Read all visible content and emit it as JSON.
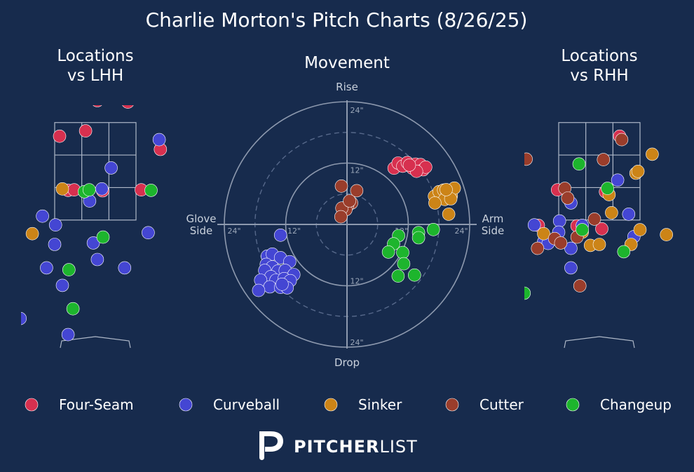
{
  "chart_data": {
    "type": "scatter",
    "title": "Charlie Morton's Pitch Charts (8/26/25)",
    "brand": {
      "bold": "PITCHER",
      "light": "LIST"
    },
    "pitch_types": [
      {
        "key": "FF",
        "name": "Four-Seam",
        "color": "#d7304f"
      },
      {
        "key": "CU",
        "name": "Curveball",
        "color": "#4446d3"
      },
      {
        "key": "SI",
        "name": "Sinker",
        "color": "#cc8417"
      },
      {
        "key": "FC",
        "name": "Cutter",
        "color": "#9a3d2b"
      },
      {
        "key": "CH",
        "name": "Changeup",
        "color": "#1db52d"
      }
    ],
    "legend_position": "bottom",
    "locations_lhh": {
      "title_line1": "Locations",
      "title_line2": "vs LHH",
      "x_range": [
        -2.6,
        2.6
      ],
      "y_range": [
        -0.9,
        5.2
      ],
      "zone": {
        "x": [
          -1.0,
          1.0
        ],
        "y": [
          1.5,
          3.5
        ]
      },
      "points": [
        {
          "t": "FF",
          "x": -0.3,
          "y": 4.52
        },
        {
          "t": "FF",
          "x": 0.05,
          "y": 3.95
        },
        {
          "t": "FF",
          "x": 0.8,
          "y": 3.92
        },
        {
          "t": "FF",
          "x": -0.88,
          "y": 3.22
        },
        {
          "t": "FF",
          "x": -0.24,
          "y": 3.33
        },
        {
          "t": "FF",
          "x": 1.6,
          "y": 2.95
        },
        {
          "t": "FF",
          "x": -0.67,
          "y": 2.11
        },
        {
          "t": "FF",
          "x": -0.52,
          "y": 2.12
        },
        {
          "t": "FF",
          "x": 0.18,
          "y": 2.1
        },
        {
          "t": "FF",
          "x": 1.13,
          "y": 2.12
        },
        {
          "t": "CU",
          "x": 1.57,
          "y": 3.15
        },
        {
          "t": "CU",
          "x": 0.39,
          "y": 2.57
        },
        {
          "t": "CU",
          "x": 0.16,
          "y": 2.14
        },
        {
          "t": "CU",
          "x": -0.14,
          "y": 1.89
        },
        {
          "t": "CU",
          "x": -1.3,
          "y": 1.58
        },
        {
          "t": "CU",
          "x": -0.98,
          "y": 1.4
        },
        {
          "t": "CU",
          "x": 1.3,
          "y": 1.24
        },
        {
          "t": "CU",
          "x": -1.0,
          "y": 1.0
        },
        {
          "t": "CU",
          "x": -0.05,
          "y": 1.03
        },
        {
          "t": "CU",
          "x": 0.05,
          "y": 0.69
        },
        {
          "t": "CU",
          "x": -1.2,
          "y": 0.52
        },
        {
          "t": "CU",
          "x": 0.72,
          "y": 0.52
        },
        {
          "t": "CU",
          "x": -0.81,
          "y": 0.16
        },
        {
          "t": "CU",
          "x": -1.85,
          "y": -0.52
        },
        {
          "t": "CU",
          "x": -0.67,
          "y": -0.85
        },
        {
          "t": "SI",
          "x": -0.81,
          "y": 2.14
        },
        {
          "t": "SI",
          "x": -1.55,
          "y": 1.22
        },
        {
          "t": "CH",
          "x": -0.27,
          "y": 2.08
        },
        {
          "t": "CH",
          "x": -0.15,
          "y": 2.12
        },
        {
          "t": "CH",
          "x": 1.37,
          "y": 2.11
        },
        {
          "t": "CH",
          "x": 0.19,
          "y": 1.15
        },
        {
          "t": "CH",
          "x": -0.65,
          "y": 0.48
        },
        {
          "t": "CH",
          "x": -0.55,
          "y": -0.32
        }
      ]
    },
    "movement": {
      "title": "Movement",
      "label_top": "Rise",
      "label_bottom": "Drop",
      "label_left_1": "Glove",
      "label_left_2": "Side",
      "label_right_1": "Arm",
      "label_right_2": "Side",
      "rings": [
        {
          "r": 6,
          "style": "dashed"
        },
        {
          "r": 12,
          "style": "solid"
        },
        {
          "r": 18,
          "style": "dashed"
        },
        {
          "r": 24,
          "style": "solid"
        }
      ],
      "tick_labels": [
        {
          "text": "24\"",
          "pos": "top-outer"
        },
        {
          "text": "12\"",
          "pos": "top-inner"
        },
        {
          "text": "12\"",
          "pos": "bottom-inner"
        },
        {
          "text": "24\"",
          "pos": "bottom-outer"
        },
        {
          "text": "24\"",
          "pos": "left-outer"
        },
        {
          "text": "12\"",
          "pos": "left-inner"
        },
        {
          "text": "12\"",
          "pos": "right-inner"
        },
        {
          "text": "24\"",
          "pos": "right-outer"
        }
      ],
      "units": "inches",
      "points": [
        {
          "t": "FF",
          "x": 9.2,
          "y": 11.0
        },
        {
          "t": "FF",
          "x": 10.0,
          "y": 12.0
        },
        {
          "t": "FF",
          "x": 10.9,
          "y": 11.4
        },
        {
          "t": "FF",
          "x": 11.8,
          "y": 12.1
        },
        {
          "t": "FF",
          "x": 12.8,
          "y": 11.0
        },
        {
          "t": "FF",
          "x": 13.4,
          "y": 11.8
        },
        {
          "t": "FF",
          "x": 14.0,
          "y": 11.1
        },
        {
          "t": "FF",
          "x": 14.4,
          "y": 11.7
        },
        {
          "t": "FF",
          "x": 14.9,
          "y": 10.7
        },
        {
          "t": "FF",
          "x": 15.4,
          "y": 11.2
        },
        {
          "t": "FF",
          "x": 13.6,
          "y": 10.4
        },
        {
          "t": "FF",
          "x": 12.2,
          "y": 11.6
        },
        {
          "t": "SI",
          "x": 17.1,
          "y": 5.5
        },
        {
          "t": "SI",
          "x": 18.0,
          "y": 6.4
        },
        {
          "t": "SI",
          "x": 18.9,
          "y": 6.7
        },
        {
          "t": "SI",
          "x": 19.6,
          "y": 6.0
        },
        {
          "t": "SI",
          "x": 20.4,
          "y": 5.6
        },
        {
          "t": "SI",
          "x": 21.0,
          "y": 7.1
        },
        {
          "t": "SI",
          "x": 19.1,
          "y": 4.9
        },
        {
          "t": "SI",
          "x": 20.3,
          "y": 5.0
        },
        {
          "t": "SI",
          "x": 17.2,
          "y": 4.2
        },
        {
          "t": "SI",
          "x": 19.9,
          "y": 2.0
        },
        {
          "t": "SI",
          "x": 19.4,
          "y": 6.8
        },
        {
          "t": "FC",
          "x": -1.1,
          "y": 7.5
        },
        {
          "t": "FC",
          "x": 1.9,
          "y": 6.6
        },
        {
          "t": "FC",
          "x": 0.9,
          "y": 4.2
        },
        {
          "t": "FC",
          "x": 0.1,
          "y": 3.6
        },
        {
          "t": "FC",
          "x": -0.2,
          "y": 2.9
        },
        {
          "t": "FC",
          "x": -1.0,
          "y": 3.2
        },
        {
          "t": "FC",
          "x": -1.2,
          "y": 1.5
        },
        {
          "t": "FC",
          "x": 0.5,
          "y": 4.6
        },
        {
          "t": "CH",
          "x": 10.1,
          "y": -2.2
        },
        {
          "t": "CH",
          "x": 14.0,
          "y": -1.6
        },
        {
          "t": "CH",
          "x": 16.9,
          "y": -1.0
        },
        {
          "t": "CH",
          "x": 14.0,
          "y": -2.6
        },
        {
          "t": "CH",
          "x": 9.1,
          "y": -3.8
        },
        {
          "t": "CH",
          "x": 8.1,
          "y": -5.4
        },
        {
          "t": "CH",
          "x": 10.9,
          "y": -5.5
        },
        {
          "t": "CH",
          "x": 11.1,
          "y": -7.7
        },
        {
          "t": "CH",
          "x": 10.0,
          "y": -10.1
        },
        {
          "t": "CH",
          "x": 13.2,
          "y": -9.9
        },
        {
          "t": "CU",
          "x": -13.0,
          "y": -2.1
        },
        {
          "t": "CU",
          "x": -15.6,
          "y": -6.2
        },
        {
          "t": "CU",
          "x": -14.6,
          "y": -5.8
        },
        {
          "t": "CU",
          "x": -13.0,
          "y": -6.5
        },
        {
          "t": "CU",
          "x": -11.2,
          "y": -7.3
        },
        {
          "t": "CU",
          "x": -15.8,
          "y": -7.8
        },
        {
          "t": "CU",
          "x": -14.6,
          "y": -8.3
        },
        {
          "t": "CU",
          "x": -13.5,
          "y": -9.1
        },
        {
          "t": "CU",
          "x": -12.1,
          "y": -9.0
        },
        {
          "t": "CU",
          "x": -10.4,
          "y": -9.8
        },
        {
          "t": "CU",
          "x": -16.1,
          "y": -9.0
        },
        {
          "t": "CU",
          "x": -14.9,
          "y": -10.2
        },
        {
          "t": "CU",
          "x": -13.9,
          "y": -10.9
        },
        {
          "t": "CU",
          "x": -12.3,
          "y": -10.6
        },
        {
          "t": "CU",
          "x": -11.1,
          "y": -11.0
        },
        {
          "t": "CU",
          "x": -16.9,
          "y": -10.9
        },
        {
          "t": "CU",
          "x": -15.1,
          "y": -12.2
        },
        {
          "t": "CU",
          "x": -13.0,
          "y": -12.3
        },
        {
          "t": "CU",
          "x": -11.7,
          "y": -12.4
        },
        {
          "t": "CU",
          "x": -17.3,
          "y": -12.9
        },
        {
          "t": "CU",
          "x": -12.7,
          "y": -11.7
        }
      ]
    },
    "locations_rhh": {
      "title_line1": "Locations",
      "title_line2": "vs RHH",
      "x_range": [
        -2.6,
        2.6
      ],
      "y_range": [
        -0.9,
        5.2
      ],
      "zone": {
        "x": [
          -1.0,
          1.0
        ],
        "y": [
          1.5,
          3.5
        ]
      },
      "points": [
        {
          "t": "FF",
          "x": 0.5,
          "y": 3.22
        },
        {
          "t": "FF",
          "x": -1.03,
          "y": 2.12
        },
        {
          "t": "FF",
          "x": 0.15,
          "y": 2.08
        },
        {
          "t": "FF",
          "x": -1.5,
          "y": 1.39
        },
        {
          "t": "FF",
          "x": -0.55,
          "y": 1.38
        },
        {
          "t": "FF",
          "x": 0.06,
          "y": 1.32
        },
        {
          "t": "CU",
          "x": 0.45,
          "y": 2.32
        },
        {
          "t": "CU",
          "x": -0.7,
          "y": 1.85
        },
        {
          "t": "CU",
          "x": 0.72,
          "y": 1.62
        },
        {
          "t": "CU",
          "x": -1.6,
          "y": 1.4
        },
        {
          "t": "CU",
          "x": -0.98,
          "y": 1.48
        },
        {
          "t": "CU",
          "x": -1.0,
          "y": 1.25
        },
        {
          "t": "CU",
          "x": -0.42,
          "y": 1.39
        },
        {
          "t": "CU",
          "x": 0.85,
          "y": 1.16
        },
        {
          "t": "CU",
          "x": -1.37,
          "y": 1.05
        },
        {
          "t": "CU",
          "x": -1.26,
          "y": 1.02
        },
        {
          "t": "CU",
          "x": -0.7,
          "y": 0.92
        },
        {
          "t": "CU",
          "x": -0.7,
          "y": 0.52
        },
        {
          "t": "SI",
          "x": 1.3,
          "y": 2.85
        },
        {
          "t": "SI",
          "x": 0.9,
          "y": 2.46
        },
        {
          "t": "SI",
          "x": 0.95,
          "y": 2.5
        },
        {
          "t": "SI",
          "x": 0.24,
          "y": 2.02
        },
        {
          "t": "SI",
          "x": 0.3,
          "y": 1.65
        },
        {
          "t": "SI",
          "x": 1.0,
          "y": 1.3
        },
        {
          "t": "SI",
          "x": -0.42,
          "y": 1.25
        },
        {
          "t": "SI",
          "x": -1.37,
          "y": 1.22
        },
        {
          "t": "SI",
          "x": -0.22,
          "y": 0.98
        },
        {
          "t": "SI",
          "x": 0.0,
          "y": 1.0
        },
        {
          "t": "SI",
          "x": 0.78,
          "y": 1.0
        },
        {
          "t": "SI",
          "x": 1.65,
          "y": 1.2
        },
        {
          "t": "FC",
          "x": -1.8,
          "y": 2.75
        },
        {
          "t": "FC",
          "x": 0.55,
          "y": 3.15
        },
        {
          "t": "FC",
          "x": 0.1,
          "y": 2.74
        },
        {
          "t": "FC",
          "x": -0.85,
          "y": 2.15
        },
        {
          "t": "FC",
          "x": -0.78,
          "y": 1.95
        },
        {
          "t": "FC",
          "x": -0.12,
          "y": 1.52
        },
        {
          "t": "FC",
          "x": -0.55,
          "y": 1.15
        },
        {
          "t": "FC",
          "x": -1.1,
          "y": 1.12
        },
        {
          "t": "FC",
          "x": -0.95,
          "y": 1.03
        },
        {
          "t": "FC",
          "x": -1.52,
          "y": 0.92
        },
        {
          "t": "FC",
          "x": -0.48,
          "y": 0.15
        },
        {
          "t": "CH",
          "x": -0.5,
          "y": 2.65
        },
        {
          "t": "CH",
          "x": 0.2,
          "y": 2.15
        },
        {
          "t": "CH",
          "x": -0.42,
          "y": 1.3
        },
        {
          "t": "CH",
          "x": 0.6,
          "y": 0.85
        },
        {
          "t": "CH",
          "x": -1.85,
          "y": 0.0
        }
      ]
    }
  }
}
